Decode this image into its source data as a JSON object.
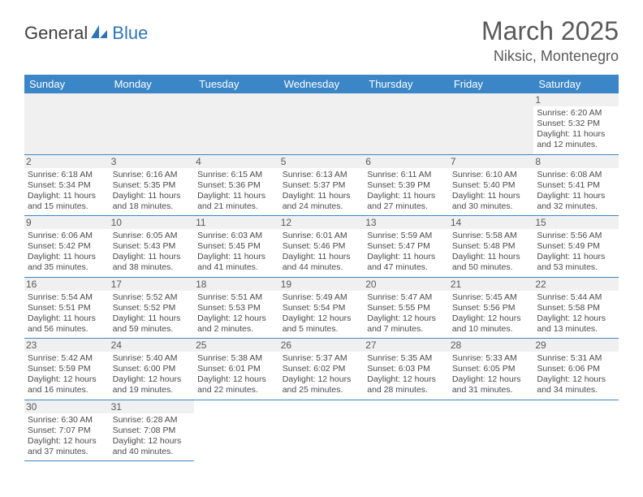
{
  "logo": {
    "part1": "General",
    "part2": "Blue"
  },
  "title": "March 2025",
  "location": "Niksic, Montenegro",
  "colors": {
    "header_bg": "#3b86c6",
    "header_text": "#ffffff",
    "border": "#3b86c6",
    "shade": "#f0f0f0",
    "text": "#4a4a4a",
    "logo_blue": "#2f75b5"
  },
  "day_headers": [
    "Sunday",
    "Monday",
    "Tuesday",
    "Wednesday",
    "Thursday",
    "Friday",
    "Saturday"
  ],
  "weeks": [
    [
      null,
      null,
      null,
      null,
      null,
      null,
      {
        "n": "1",
        "sr": "6:20 AM",
        "ss": "5:32 PM",
        "dl": "11 hours and 12 minutes."
      }
    ],
    [
      {
        "n": "2",
        "sr": "6:18 AM",
        "ss": "5:34 PM",
        "dl": "11 hours and 15 minutes."
      },
      {
        "n": "3",
        "sr": "6:16 AM",
        "ss": "5:35 PM",
        "dl": "11 hours and 18 minutes."
      },
      {
        "n": "4",
        "sr": "6:15 AM",
        "ss": "5:36 PM",
        "dl": "11 hours and 21 minutes."
      },
      {
        "n": "5",
        "sr": "6:13 AM",
        "ss": "5:37 PM",
        "dl": "11 hours and 24 minutes."
      },
      {
        "n": "6",
        "sr": "6:11 AM",
        "ss": "5:39 PM",
        "dl": "11 hours and 27 minutes."
      },
      {
        "n": "7",
        "sr": "6:10 AM",
        "ss": "5:40 PM",
        "dl": "11 hours and 30 minutes."
      },
      {
        "n": "8",
        "sr": "6:08 AM",
        "ss": "5:41 PM",
        "dl": "11 hours and 32 minutes."
      }
    ],
    [
      {
        "n": "9",
        "sr": "6:06 AM",
        "ss": "5:42 PM",
        "dl": "11 hours and 35 minutes."
      },
      {
        "n": "10",
        "sr": "6:05 AM",
        "ss": "5:43 PM",
        "dl": "11 hours and 38 minutes."
      },
      {
        "n": "11",
        "sr": "6:03 AM",
        "ss": "5:45 PM",
        "dl": "11 hours and 41 minutes."
      },
      {
        "n": "12",
        "sr": "6:01 AM",
        "ss": "5:46 PM",
        "dl": "11 hours and 44 minutes."
      },
      {
        "n": "13",
        "sr": "5:59 AM",
        "ss": "5:47 PM",
        "dl": "11 hours and 47 minutes."
      },
      {
        "n": "14",
        "sr": "5:58 AM",
        "ss": "5:48 PM",
        "dl": "11 hours and 50 minutes."
      },
      {
        "n": "15",
        "sr": "5:56 AM",
        "ss": "5:49 PM",
        "dl": "11 hours and 53 minutes."
      }
    ],
    [
      {
        "n": "16",
        "sr": "5:54 AM",
        "ss": "5:51 PM",
        "dl": "11 hours and 56 minutes."
      },
      {
        "n": "17",
        "sr": "5:52 AM",
        "ss": "5:52 PM",
        "dl": "11 hours and 59 minutes."
      },
      {
        "n": "18",
        "sr": "5:51 AM",
        "ss": "5:53 PM",
        "dl": "12 hours and 2 minutes."
      },
      {
        "n": "19",
        "sr": "5:49 AM",
        "ss": "5:54 PM",
        "dl": "12 hours and 5 minutes."
      },
      {
        "n": "20",
        "sr": "5:47 AM",
        "ss": "5:55 PM",
        "dl": "12 hours and 7 minutes."
      },
      {
        "n": "21",
        "sr": "5:45 AM",
        "ss": "5:56 PM",
        "dl": "12 hours and 10 minutes."
      },
      {
        "n": "22",
        "sr": "5:44 AM",
        "ss": "5:58 PM",
        "dl": "12 hours and 13 minutes."
      }
    ],
    [
      {
        "n": "23",
        "sr": "5:42 AM",
        "ss": "5:59 PM",
        "dl": "12 hours and 16 minutes."
      },
      {
        "n": "24",
        "sr": "5:40 AM",
        "ss": "6:00 PM",
        "dl": "12 hours and 19 minutes."
      },
      {
        "n": "25",
        "sr": "5:38 AM",
        "ss": "6:01 PM",
        "dl": "12 hours and 22 minutes."
      },
      {
        "n": "26",
        "sr": "5:37 AM",
        "ss": "6:02 PM",
        "dl": "12 hours and 25 minutes."
      },
      {
        "n": "27",
        "sr": "5:35 AM",
        "ss": "6:03 PM",
        "dl": "12 hours and 28 minutes."
      },
      {
        "n": "28",
        "sr": "5:33 AM",
        "ss": "6:05 PM",
        "dl": "12 hours and 31 minutes."
      },
      {
        "n": "29",
        "sr": "5:31 AM",
        "ss": "6:06 PM",
        "dl": "12 hours and 34 minutes."
      }
    ],
    [
      {
        "n": "30",
        "sr": "6:30 AM",
        "ss": "7:07 PM",
        "dl": "12 hours and 37 minutes."
      },
      {
        "n": "31",
        "sr": "6:28 AM",
        "ss": "7:08 PM",
        "dl": "12 hours and 40 minutes."
      },
      null,
      null,
      null,
      null,
      null
    ]
  ],
  "labels": {
    "sunrise": "Sunrise:",
    "sunset": "Sunset:",
    "daylight": "Daylight:"
  }
}
